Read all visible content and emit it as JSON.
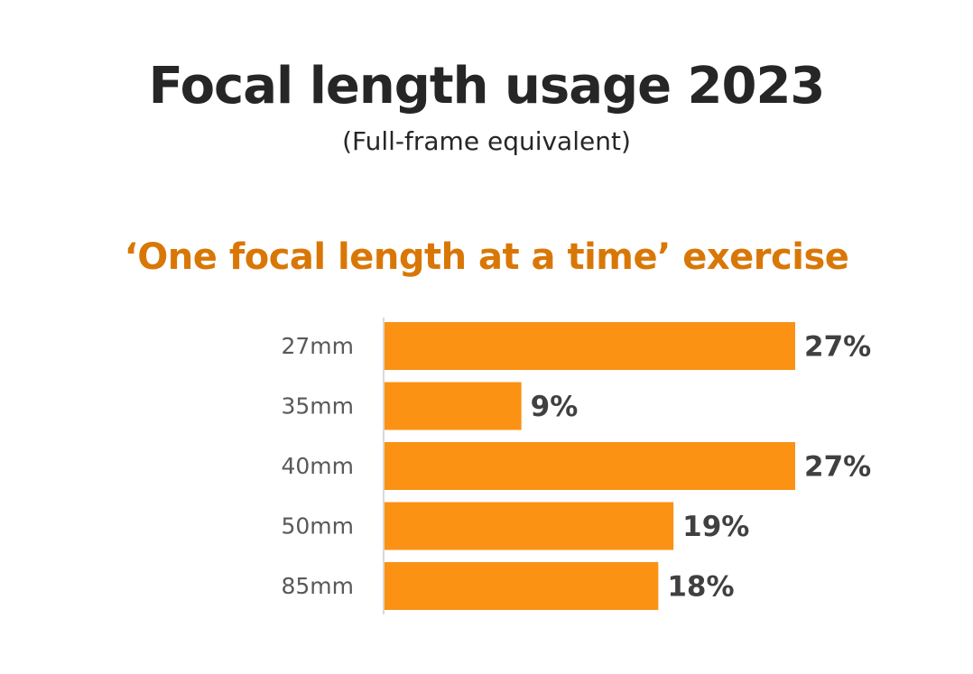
{
  "chart_data": {
    "type": "bar",
    "orientation": "horizontal",
    "title": "Focal length usage 2023",
    "subtitle": "(Full-frame equivalent)",
    "heading": "‘One focal length at a time’ exercise",
    "categories": [
      "27mm",
      "35mm",
      "40mm",
      "50mm",
      "85mm"
    ],
    "values": [
      27,
      9,
      27,
      19,
      18
    ],
    "data_labels": [
      "27%",
      "9%",
      "27%",
      "19%",
      "18%"
    ],
    "xlim": [
      0,
      27
    ],
    "grid": false,
    "legend": "none",
    "colors": {
      "bar": "#fb9214",
      "title": "#262626",
      "heading": "#d97706",
      "axis": "#cccccc"
    }
  }
}
